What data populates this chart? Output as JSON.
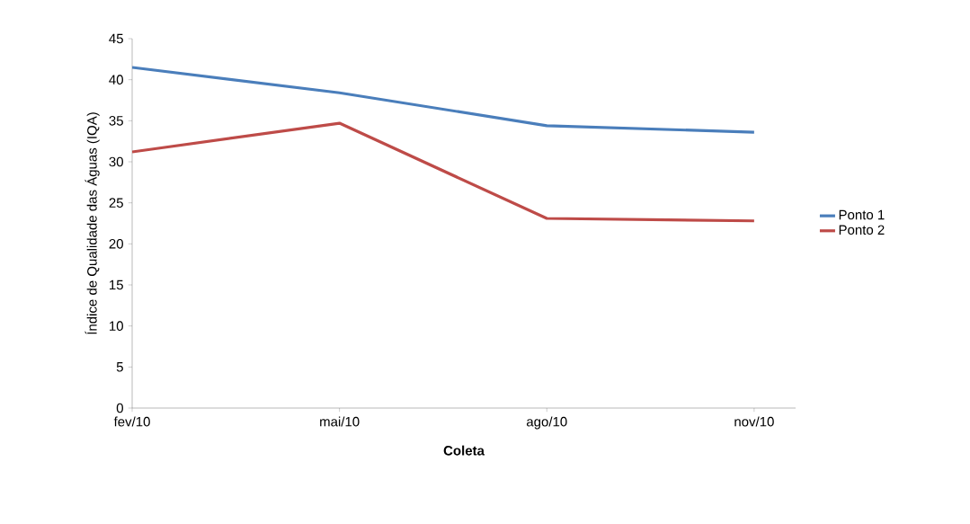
{
  "chart_data": {
    "type": "line",
    "xlabel": "Coleta",
    "ylabel": "Índice de Qualidade das Águas (IQA)",
    "categories": [
      "fev/10",
      "mai/10",
      "ago/10",
      "nov/10"
    ],
    "series": [
      {
        "name": "Ponto 1",
        "color": "#4a7ebb",
        "values": [
          41.5,
          38.4,
          34.4,
          33.6
        ]
      },
      {
        "name": "Ponto 2",
        "color": "#be4b48",
        "values": [
          31.2,
          34.7,
          23.1,
          22.8
        ]
      }
    ],
    "ylim": [
      0,
      45
    ],
    "yticks": [
      0,
      5,
      10,
      15,
      20,
      25,
      30,
      35,
      40,
      45
    ],
    "grid": false,
    "legend": "right",
    "marker": "none",
    "line_style": "solid"
  }
}
